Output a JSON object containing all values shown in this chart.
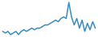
{
  "values": [
    5,
    4.5,
    5,
    4,
    4.5,
    5,
    4,
    5,
    5.5,
    5,
    5.5,
    6,
    5.5,
    6,
    6,
    6.5,
    7,
    7,
    7.5,
    8,
    8.5,
    8,
    9,
    9.5,
    9,
    14,
    9.5,
    7,
    9,
    6,
    8.5,
    5,
    7.5,
    5.5,
    8,
    6
  ],
  "line_color": "#3a8bbf",
  "background_color": "#ffffff",
  "linewidth": 1.1
}
